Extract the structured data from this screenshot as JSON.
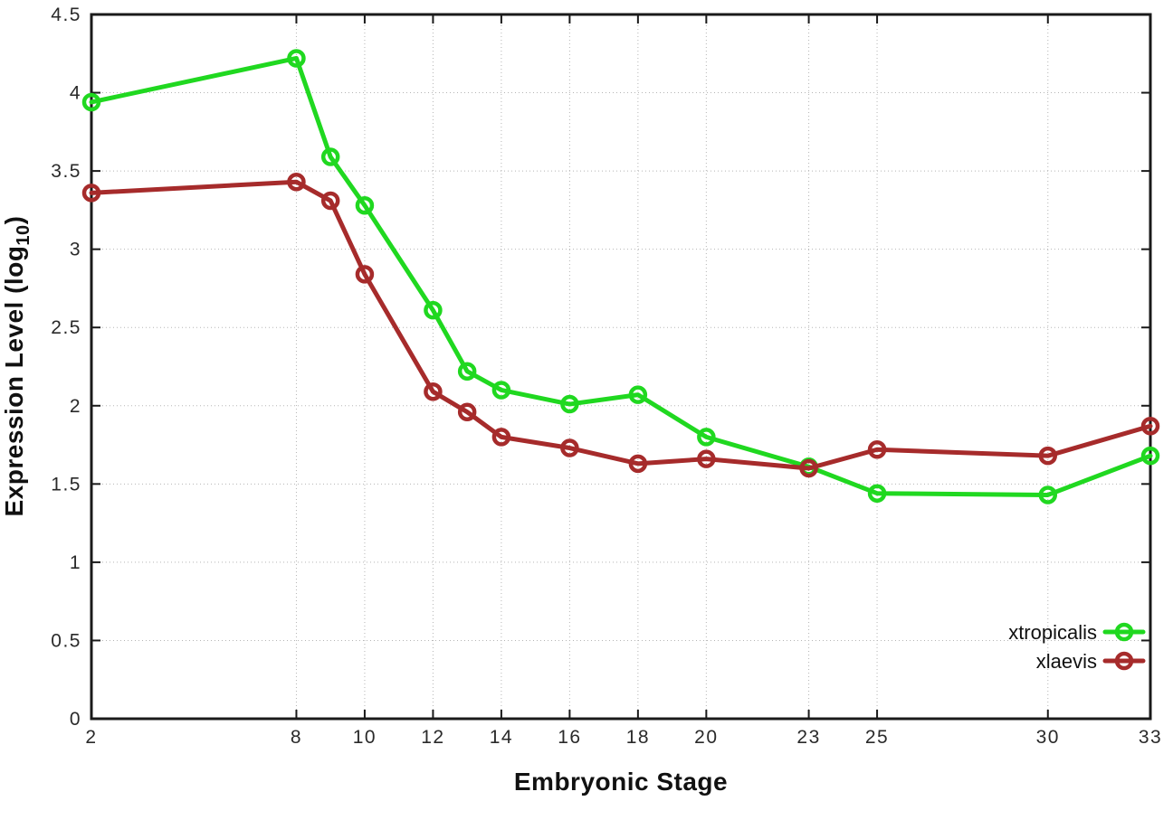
{
  "figure": {
    "xlabel": "Embryonic Stage",
    "ylabel_prefix": "Expression Level (log",
    "ylabel_sub": "10",
    "ylabel_suffix": ")"
  },
  "chart_data": {
    "type": "line",
    "title": "",
    "xlabel": "Embryonic Stage",
    "ylabel": "Expression Level (log10)",
    "x": [
      2,
      8,
      9,
      10,
      12,
      13,
      14,
      16,
      18,
      20,
      23,
      25,
      30,
      33
    ],
    "series": [
      {
        "name": "xtropicalis",
        "color": "#20d820",
        "values": [
          3.94,
          4.22,
          3.59,
          3.28,
          2.61,
          2.22,
          2.1,
          2.01,
          2.07,
          1.8,
          1.61,
          1.44,
          1.43,
          1.68
        ]
      },
      {
        "name": "xlaevis",
        "color": "#a62b2b",
        "values": [
          3.36,
          3.43,
          3.31,
          2.84,
          2.09,
          1.96,
          1.8,
          1.73,
          1.63,
          1.66,
          1.6,
          1.72,
          1.68,
          1.87
        ]
      }
    ],
    "x_ticks": [
      2,
      8,
      10,
      12,
      14,
      16,
      18,
      20,
      23,
      25,
      30,
      33
    ],
    "y_ticks": [
      0,
      0.5,
      1,
      1.5,
      2,
      2.5,
      3,
      3.5,
      4,
      4.5
    ],
    "xlim": [
      2,
      33
    ],
    "ylim": [
      0,
      4.5
    ],
    "grid": true,
    "legend_position": "bottom-right",
    "marker": "open-circle",
    "axis_color": "#1a1a1a",
    "grid_color": "#b5b5b5",
    "tick_label_color": "#2a2a2a"
  }
}
